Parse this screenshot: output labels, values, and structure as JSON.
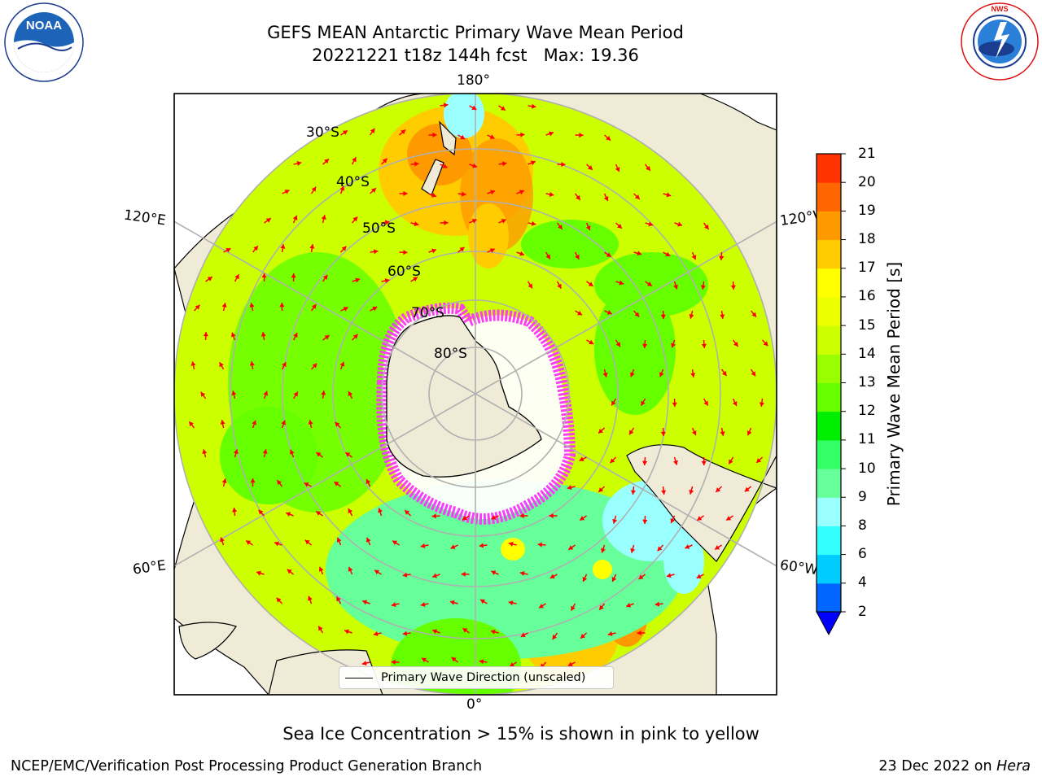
{
  "header": {
    "title_line1": "GEFS MEAN Antarctic Primary Wave Mean Period",
    "title_line2": "20221221 t18z 144h fcst   Max: 19.36"
  },
  "logos": {
    "left": "NOAA",
    "left_ring_text": "NATIONAL OCEANIC AND ATMOSPHERIC ADMINISTRATION · U.S. DEPARTMENT OF COMMERCE",
    "right_ring_text": "NATIONAL WEATHER SERVICE"
  },
  "map": {
    "projection": "south polar stereographic",
    "lon_labels": {
      "top": "180°",
      "bottom": "0°",
      "left_upper": "120°E",
      "left_lower": "60°E",
      "right_upper": "120°W",
      "right_lower": "60°W"
    },
    "lat_labels": [
      "30°S",
      "40°S",
      "50°S",
      "60°S",
      "70°S",
      "80°S"
    ],
    "colors": {
      "land": "#efebd7",
      "ocean_default": "#ccff00",
      "arrow": "#ff0000",
      "ice": "#ff33ff",
      "grid": "#b0b0b0"
    }
  },
  "legend": {
    "label": "Primary Wave Direction (unscaled)"
  },
  "colorbar": {
    "label": "Primary Wave Mean Period [s]",
    "ticks": [
      "2",
      "4",
      "6",
      "8",
      "9",
      "10",
      "11",
      "12",
      "13",
      "14",
      "15",
      "16",
      "17",
      "18",
      "19",
      "20",
      "21"
    ],
    "colors": [
      "#0066ff",
      "#00ccff",
      "#33ffff",
      "#99ffff",
      "#66ff99",
      "#33ff66",
      "#00ee00",
      "#66ff00",
      "#99ff00",
      "#ccff00",
      "#eeff00",
      "#ffff00",
      "#ffcc00",
      "#ff9900",
      "#ff6600",
      "#ff3300",
      "#ff0000"
    ],
    "extend_min_color": "#0000ff"
  },
  "subtitle": "Sea Ice Concentration > 15% is shown in pink to yellow",
  "footer": {
    "left": "NCEP/EMC/Verification Post Processing Product Generation Branch",
    "right_date": "23 Dec 2022 on",
    "right_machine": "Hera"
  }
}
